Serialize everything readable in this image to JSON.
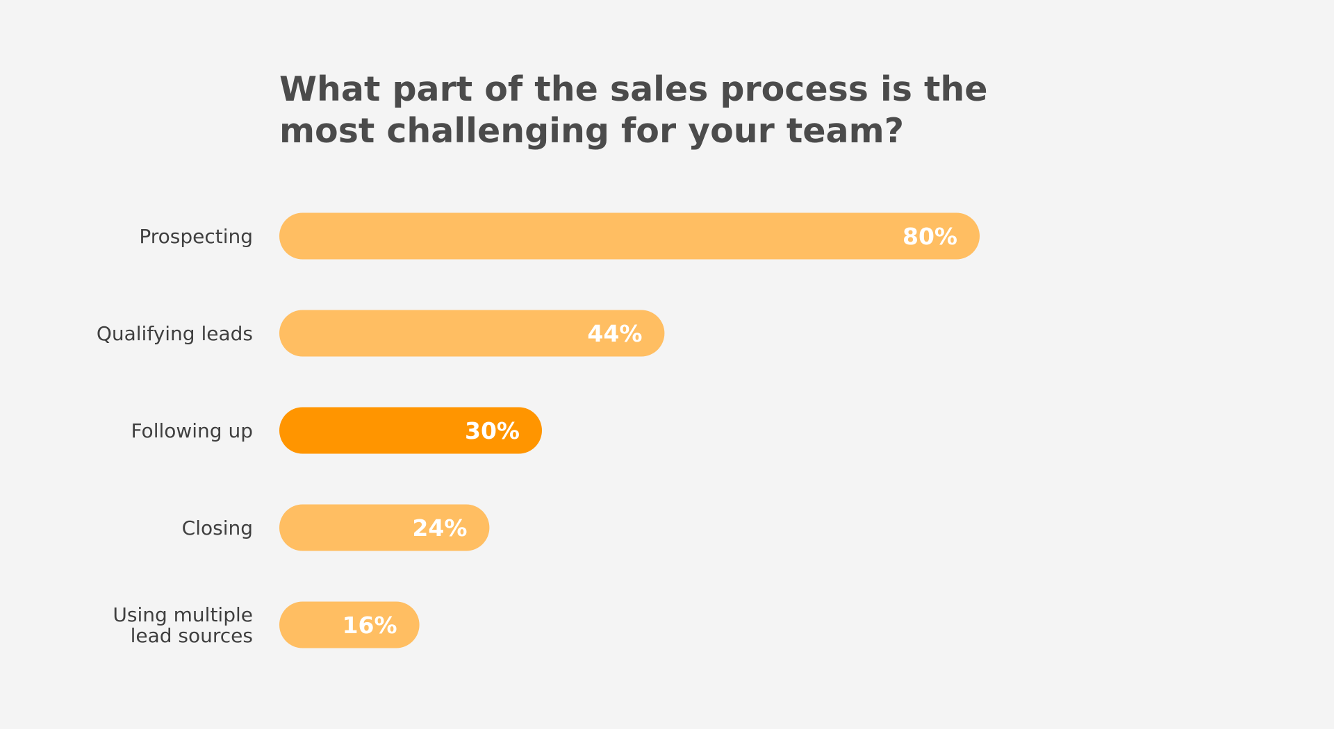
{
  "chart_data": {
    "type": "bar",
    "orientation": "horizontal",
    "title_lines": [
      "What part of the sales process is the",
      "most challenging for your team?"
    ],
    "categories": [
      [
        "Prospecting"
      ],
      [
        "Qualifying leads"
      ],
      [
        "Following up"
      ],
      [
        "Closing"
      ],
      [
        "Using multiple",
        "lead sources"
      ]
    ],
    "values": [
      80,
      44,
      30,
      24,
      16
    ],
    "value_labels": [
      "80%",
      "44%",
      "30%",
      "24%",
      "16%"
    ],
    "highlighted_index": 2,
    "xlim": [
      0,
      100
    ],
    "grid": false,
    "legend": "none",
    "colors": {
      "bar": "#ffbe62",
      "highlight": "#ff9500",
      "background": "#f4f4f4",
      "title": "#4b4b4b",
      "category_text": "#3f3f3f",
      "value_text": "#ffffff"
    }
  }
}
